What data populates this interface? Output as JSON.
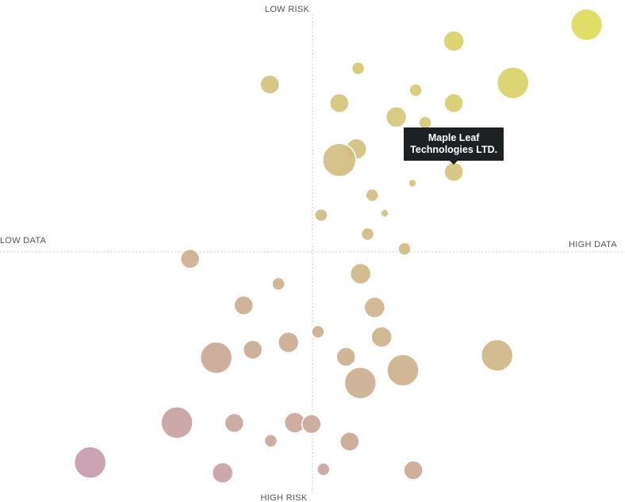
{
  "chart_data": {
    "type": "scatter",
    "axes": {
      "top_label": "LOW RISK",
      "bottom_label": "HIGH RISK",
      "left_label": "LOW DATA",
      "right_label": "HIGH DATA"
    },
    "xlim": [
      -1,
      1
    ],
    "ylim": [
      -1,
      1
    ],
    "gridlines": "dotted center cross",
    "color_scale": [
      "#c494b4",
      "#c9a891",
      "#d2c07a",
      "#dedd53"
    ],
    "tooltip": {
      "lines": [
        "Maple Leaf",
        "Technologies LTD."
      ]
    },
    "points": [
      {
        "x": 0.9,
        "y": 0.962,
        "size": 20
      },
      {
        "x": 0.464,
        "y": 0.893,
        "size": 13
      },
      {
        "x": 0.15,
        "y": 0.778,
        "size": 8
      },
      {
        "x": 0.339,
        "y": 0.685,
        "size": 8
      },
      {
        "x": 0.658,
        "y": 0.716,
        "size": 20
      },
      {
        "x": -0.14,
        "y": 0.709,
        "size": 12
      },
      {
        "x": 0.088,
        "y": 0.63,
        "size": 12
      },
      {
        "x": 0.464,
        "y": 0.63,
        "size": 12
      },
      {
        "x": 0.275,
        "y": 0.571,
        "size": 13
      },
      {
        "x": 0.37,
        "y": 0.547,
        "size": 8
      },
      {
        "x": 0.144,
        "y": 0.436,
        "size": 13
      },
      {
        "x": 0.088,
        "y": 0.389,
        "size": 21
      },
      {
        "x": 0.464,
        "y": 0.339,
        "size": 12
      },
      {
        "x": 0.328,
        "y": 0.291,
        "size": 5
      },
      {
        "x": 0.196,
        "y": 0.24,
        "size": 8
      },
      {
        "x": 0.028,
        "y": 0.155,
        "size": 8
      },
      {
        "x": 0.237,
        "y": 0.163,
        "size": 5
      },
      {
        "x": 0.181,
        "y": 0.075,
        "size": 8
      },
      {
        "x": 0.302,
        "y": 0.012,
        "size": 8
      },
      {
        "x": -0.402,
        "y": -0.03,
        "size": 12
      },
      {
        "x": 0.158,
        "y": -0.093,
        "size": 13
      },
      {
        "x": -0.112,
        "y": -0.136,
        "size": 8
      },
      {
        "x": 0.204,
        "y": -0.236,
        "size": 13
      },
      {
        "x": -0.226,
        "y": -0.227,
        "size": 12
      },
      {
        "x": 0.018,
        "y": -0.339,
        "size": 8
      },
      {
        "x": 0.227,
        "y": -0.361,
        "size": 13
      },
      {
        "x": -0.196,
        "y": -0.415,
        "size": 12
      },
      {
        "x": -0.079,
        "y": -0.384,
        "size": 13
      },
      {
        "x": 0.606,
        "y": -0.439,
        "size": 20
      },
      {
        "x": -0.316,
        "y": -0.449,
        "size": 20
      },
      {
        "x": 0.11,
        "y": -0.445,
        "size": 12
      },
      {
        "x": 0.297,
        "y": -0.502,
        "size": 20
      },
      {
        "x": 0.157,
        "y": -0.556,
        "size": 20
      },
      {
        "x": -0.445,
        "y": -0.724,
        "size": 20
      },
      {
        "x": -0.257,
        "y": -0.726,
        "size": 12
      },
      {
        "x": -0.058,
        "y": -0.724,
        "size": 13
      },
      {
        "x": -0.003,
        "y": -0.73,
        "size": 12
      },
      {
        "x": -0.137,
        "y": -0.801,
        "size": 8
      },
      {
        "x": 0.122,
        "y": -0.804,
        "size": 12
      },
      {
        "x": -0.73,
        "y": -0.893,
        "size": 20
      },
      {
        "x": -0.295,
        "y": -0.937,
        "size": 13
      },
      {
        "x": 0.036,
        "y": -0.922,
        "size": 8
      },
      {
        "x": 0.331,
        "y": -0.926,
        "size": 12
      }
    ],
    "highlighted": {
      "x": 0.464,
      "y": 0.339,
      "size": 12
    }
  }
}
